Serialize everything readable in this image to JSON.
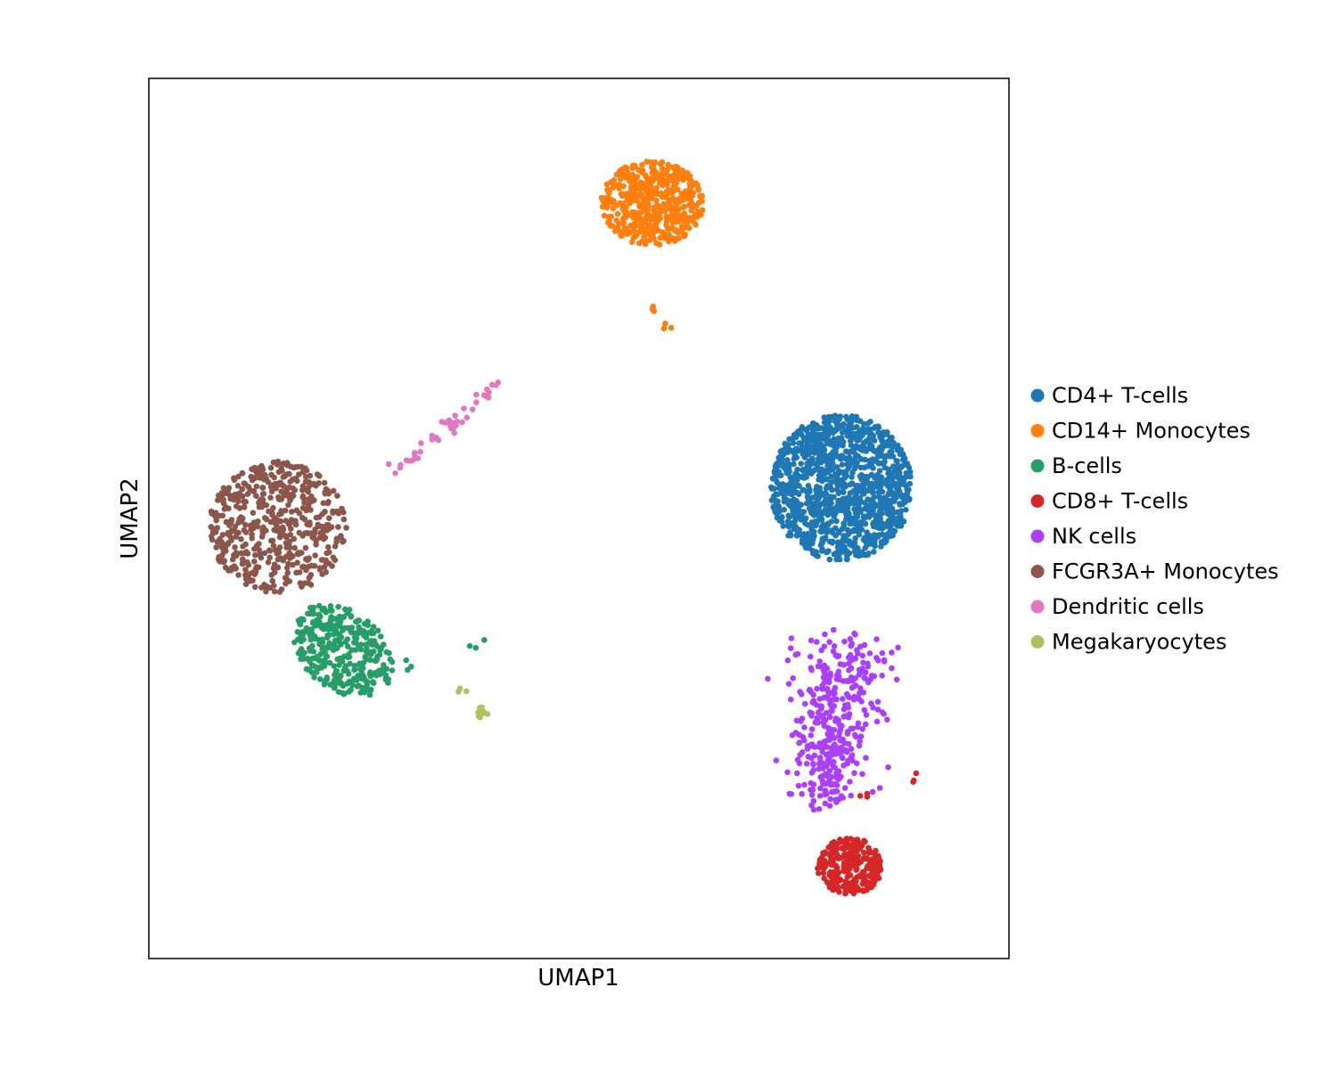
{
  "chart_data": {
    "type": "scatter",
    "title": "",
    "xlabel": "UMAP1",
    "ylabel": "UMAP2",
    "xlim": [
      0,
      100
    ],
    "ylim": [
      0,
      100
    ],
    "grid": false,
    "axis_ticks": false,
    "legend_position": "right",
    "categories": [
      {
        "name": "CD4+ T-cells",
        "color": "#1f77b4",
        "count": 1150,
        "center": [
          80.5,
          53.5
        ],
        "spread": [
          8.2,
          8.3
        ],
        "shape": "disk"
      },
      {
        "name": "CD14+ Monocytes",
        "color": "#ff7f0e",
        "count": 480,
        "center": [
          58.5,
          85.8
        ],
        "spread": [
          6.0,
          4.8
        ],
        "shape": "disk",
        "tail": [
          [
            58.5,
            74
          ],
          [
            60.3,
            72
          ]
        ]
      },
      {
        "name": "B-cells",
        "color": "#279e68",
        "count": 340,
        "center": [
          22.5,
          35.0
        ],
        "spread": [
          6.5,
          4.5
        ],
        "shape": "ellipse-tilted",
        "tail": [
          [
            30,
            33
          ],
          [
            38,
            35.5
          ]
        ]
      },
      {
        "name": "CD8+ T-cells",
        "color": "#d62728",
        "count": 260,
        "center": [
          81.5,
          10.5
        ],
        "spread": [
          3.8,
          3.2
        ],
        "shape": "disk",
        "tail": [
          [
            83,
            19
          ],
          [
            89,
            20.5
          ]
        ]
      },
      {
        "name": "NK cells",
        "color": "#aa40fc",
        "count": 380,
        "center": [
          79.5,
          27.0
        ],
        "spread": [
          6.0,
          8.5
        ],
        "shape": "trail"
      },
      {
        "name": "FCGR3A+ Monocytes",
        "color": "#8c564b",
        "count": 520,
        "center": [
          15.0,
          49.0
        ],
        "spread": [
          8.0,
          7.5
        ],
        "shape": "disk"
      },
      {
        "name": "Dendritic cells",
        "color": "#e377c2",
        "count": 45,
        "center": [
          33.0,
          58.0
        ],
        "spread": [
          9.0,
          7.0
        ],
        "shape": "line",
        "line_from": [
          28.0,
          55.0
        ],
        "line_to": [
          41.0,
          65.5
        ]
      },
      {
        "name": "Megakaryocytes",
        "color": "#b5bd61",
        "count": 14,
        "center": [
          38.8,
          28.0
        ],
        "spread": [
          0.7,
          0.7
        ],
        "shape": "disk",
        "tail": [
          [
            36.0,
            30.6
          ]
        ]
      }
    ]
  }
}
